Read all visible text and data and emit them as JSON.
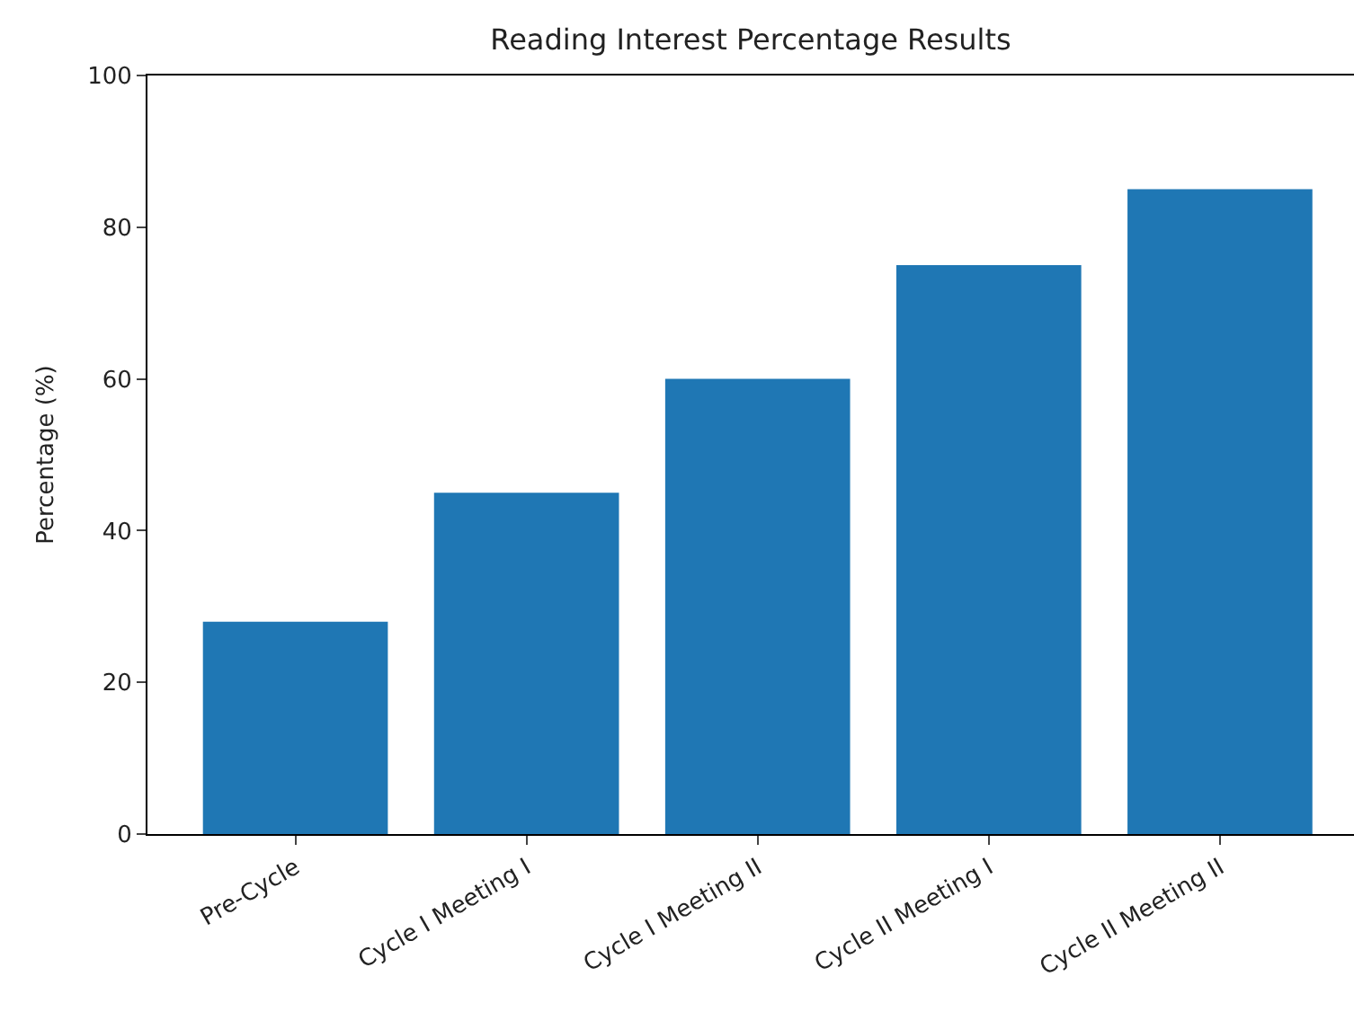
{
  "chart_data": {
    "type": "bar",
    "title": "Reading Interest Percentage Results",
    "ylabel": "Percentage (%)",
    "categories": [
      "Pre-Cycle",
      "Cycle I Meeting I",
      "Cycle I Meeting II",
      "Cycle II Meeting I",
      "Cycle II Meeting II"
    ],
    "values": [
      28,
      45,
      60,
      75,
      85
    ],
    "color": "#1f77b4",
    "ylim": [
      0,
      100
    ],
    "yticks": [
      0,
      20,
      40,
      60,
      80,
      100
    ]
  }
}
